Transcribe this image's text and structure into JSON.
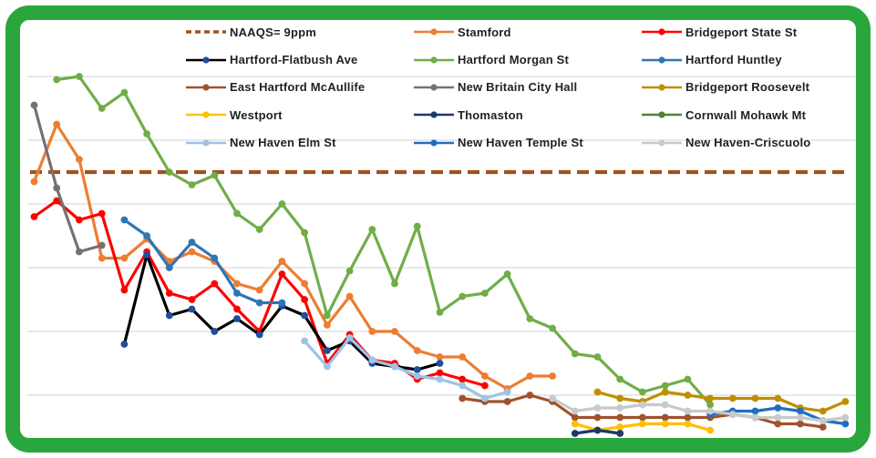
{
  "frame": {
    "border_color": "#2aa63e",
    "background": "#ffffff"
  },
  "legend": {
    "items": [
      {
        "label": "NAAQS= 9ppm",
        "color": "#A0521D",
        "style": "dashed"
      },
      {
        "label": "Stamford",
        "color": "#ED7D31",
        "style": "solid"
      },
      {
        "label": "Bridgeport State St",
        "color": "#FF0000",
        "style": "solid"
      },
      {
        "label": "Hartford-Flatbush Ave",
        "color": "#000000",
        "marker_color": "#1F4E9C",
        "style": "solid"
      },
      {
        "label": "Hartford Morgan St",
        "color": "#70AD47",
        "style": "solid"
      },
      {
        "label": "Hartford Huntley",
        "color": "#2E75B6",
        "style": "solid"
      },
      {
        "label": "East Hartford McAullife",
        "color": "#A0522D",
        "style": "solid"
      },
      {
        "label": "New Britain City Hall",
        "color": "#767171",
        "style": "solid"
      },
      {
        "label": "Bridgeport Roosevelt",
        "color": "#BF8F00",
        "style": "solid"
      },
      {
        "label": "Westport",
        "color": "#FFC000",
        "style": "solid"
      },
      {
        "label": "Thomaston",
        "color": "#1F3864",
        "style": "solid"
      },
      {
        "label": "Cornwall Mohawk Mt",
        "color": "#538135",
        "style": "solid"
      },
      {
        "label": "New Haven Elm St",
        "color": "#9DC3E6",
        "style": "solid"
      },
      {
        "label": "New Haven Temple St",
        "color": "#1F6FC0",
        "style": "solid"
      },
      {
        "label": "New Haven-Criscuolo",
        "color": "#C9C9C9",
        "style": "solid"
      }
    ]
  },
  "chart_data": {
    "type": "line",
    "title": "",
    "x_axis": {
      "labels_visible": false,
      "points": 37
    },
    "y_axis": {
      "labels_visible": false,
      "unit": "ppm",
      "ylim": [
        0,
        14
      ],
      "gridlines": [
        2,
        4,
        6,
        8,
        10,
        12
      ],
      "grid_color": "#D9D9D9"
    },
    "reference_line": {
      "label": "NAAQS= 9ppm",
      "value": 9,
      "color": "#A0521D",
      "style": "dashed"
    },
    "series": [
      {
        "name": "Stamford",
        "color": "#ED7D31",
        "values": [
          8.7,
          10.5,
          9.4,
          6.3,
          6.3,
          6.9,
          6.2,
          6.5,
          6.2,
          5.5,
          5.3,
          6.2,
          5.5,
          4.2,
          5.1,
          4.0,
          4.0,
          3.4,
          3.2,
          3.2,
          2.6,
          2.2,
          2.6,
          2.6,
          null,
          null,
          null,
          null,
          null,
          null,
          null,
          null,
          null,
          null,
          null,
          null,
          null
        ]
      },
      {
        "name": "Bridgeport State St",
        "color": "#FF0000",
        "values": [
          7.6,
          8.1,
          7.5,
          7.7,
          5.3,
          6.5,
          5.2,
          5.0,
          5.5,
          4.7,
          4.0,
          5.8,
          5.0,
          3.0,
          3.9,
          3.1,
          3.0,
          2.5,
          2.7,
          2.5,
          2.3,
          null,
          null,
          null,
          null,
          null,
          null,
          null,
          null,
          null,
          null,
          null,
          null,
          null,
          null,
          null,
          null
        ]
      },
      {
        "name": "Hartford-Flatbush Ave",
        "color": "#000000",
        "marker_color": "#1F4E9C",
        "values": [
          null,
          null,
          null,
          null,
          3.6,
          6.4,
          4.5,
          4.7,
          4.0,
          4.4,
          3.9,
          4.8,
          4.5,
          3.4,
          3.7,
          3.0,
          2.9,
          2.8,
          3.0,
          null,
          null,
          null,
          null,
          null,
          null,
          null,
          null,
          null,
          null,
          null,
          null,
          null,
          null,
          null,
          null,
          null,
          null
        ]
      },
      {
        "name": "Hartford Morgan St",
        "color": "#70AD47",
        "values": [
          null,
          11.9,
          12.0,
          11.0,
          11.5,
          10.2,
          9.0,
          8.6,
          8.9,
          7.7,
          7.2,
          8.0,
          7.1,
          4.5,
          5.9,
          7.2,
          5.5,
          7.3,
          4.6,
          5.1,
          5.2,
          5.8,
          4.4,
          4.1,
          3.3,
          3.2,
          2.5,
          2.1,
          2.3,
          2.5,
          1.7,
          null,
          null,
          null,
          null,
          null,
          null
        ]
      },
      {
        "name": "Hartford Huntley",
        "color": "#2E75B6",
        "values": [
          null,
          null,
          null,
          null,
          7.5,
          7.0,
          6.0,
          6.8,
          6.3,
          5.2,
          4.9,
          4.9,
          null,
          null,
          null,
          null,
          null,
          null,
          null,
          null,
          null,
          null,
          null,
          null,
          null,
          null,
          null,
          null,
          null,
          null,
          null,
          null,
          null,
          null,
          null,
          null,
          null
        ]
      },
      {
        "name": "East Hartford McAullife",
        "color": "#A0522D",
        "values": [
          null,
          null,
          null,
          null,
          null,
          null,
          null,
          null,
          null,
          null,
          null,
          null,
          null,
          null,
          null,
          null,
          null,
          null,
          null,
          1.9,
          1.8,
          1.8,
          2.0,
          1.8,
          1.3,
          1.3,
          1.3,
          1.3,
          1.3,
          1.3,
          1.3,
          1.4,
          1.3,
          1.1,
          1.1,
          1.0,
          null
        ]
      },
      {
        "name": "New Britain City Hall",
        "color": "#767171",
        "values": [
          11.1,
          8.5,
          6.5,
          6.7,
          null,
          null,
          null,
          null,
          null,
          null,
          null,
          null,
          null,
          null,
          null,
          null,
          null,
          null,
          null,
          null,
          null,
          null,
          null,
          null,
          null,
          null,
          null,
          null,
          null,
          null,
          null,
          null,
          null,
          null,
          null,
          null,
          null
        ]
      },
      {
        "name": "Bridgeport Roosevelt",
        "color": "#BF8F00",
        "values": [
          null,
          null,
          null,
          null,
          null,
          null,
          null,
          null,
          null,
          null,
          null,
          null,
          null,
          null,
          null,
          null,
          null,
          null,
          null,
          null,
          null,
          null,
          null,
          null,
          null,
          2.1,
          1.9,
          1.8,
          2.1,
          2.0,
          1.9,
          1.9,
          1.9,
          1.9,
          1.6,
          1.5,
          1.8
        ]
      },
      {
        "name": "Westport",
        "color": "#FFC000",
        "values": [
          null,
          null,
          null,
          null,
          null,
          null,
          null,
          null,
          null,
          null,
          null,
          null,
          null,
          null,
          null,
          null,
          null,
          null,
          null,
          null,
          null,
          null,
          null,
          null,
          1.1,
          0.9,
          1.0,
          1.1,
          1.1,
          1.1,
          0.9,
          null,
          null,
          null,
          null,
          null,
          null
        ]
      },
      {
        "name": "Thomaston",
        "color": "#1F3864",
        "values": [
          null,
          null,
          null,
          null,
          null,
          null,
          null,
          null,
          null,
          null,
          null,
          null,
          null,
          null,
          null,
          null,
          null,
          null,
          null,
          null,
          null,
          null,
          null,
          null,
          0.8,
          0.9,
          0.8,
          null,
          null,
          null,
          null,
          null,
          null,
          null,
          null,
          null,
          null
        ]
      },
      {
        "name": "Cornwall Mohawk Mt",
        "color": "#538135",
        "values": [
          null,
          null,
          null,
          null,
          null,
          null,
          null,
          null,
          null,
          null,
          null,
          null,
          null,
          null,
          null,
          null,
          null,
          null,
          null,
          null,
          null,
          null,
          null,
          null,
          null,
          null,
          null,
          null,
          null,
          null,
          null,
          null,
          null,
          null,
          null,
          null,
          null
        ]
      },
      {
        "name": "New Haven Elm St",
        "color": "#9DC3E6",
        "values": [
          null,
          null,
          null,
          null,
          null,
          null,
          null,
          null,
          null,
          null,
          null,
          null,
          3.7,
          2.9,
          3.8,
          3.1,
          2.9,
          2.6,
          2.5,
          2.3,
          1.9,
          2.1,
          null,
          null,
          null,
          null,
          null,
          null,
          null,
          null,
          null,
          null,
          null,
          null,
          null,
          null,
          null
        ]
      },
      {
        "name": "New Haven Temple St",
        "color": "#1F6FC0",
        "values": [
          null,
          null,
          null,
          null,
          null,
          null,
          null,
          null,
          null,
          null,
          null,
          null,
          null,
          null,
          null,
          null,
          null,
          null,
          null,
          null,
          null,
          null,
          null,
          null,
          null,
          null,
          null,
          null,
          null,
          null,
          1.4,
          1.5,
          1.5,
          1.6,
          1.5,
          1.2,
          1.1
        ]
      },
      {
        "name": "New Haven-Criscuolo",
        "color": "#C9C9C9",
        "values": [
          null,
          null,
          null,
          null,
          null,
          null,
          null,
          null,
          null,
          null,
          null,
          null,
          null,
          null,
          null,
          null,
          null,
          null,
          null,
          null,
          null,
          null,
          null,
          1.9,
          1.5,
          1.6,
          1.6,
          1.7,
          1.7,
          1.5,
          1.5,
          1.4,
          1.3,
          1.3,
          1.3,
          1.2,
          1.3
        ]
      }
    ]
  }
}
